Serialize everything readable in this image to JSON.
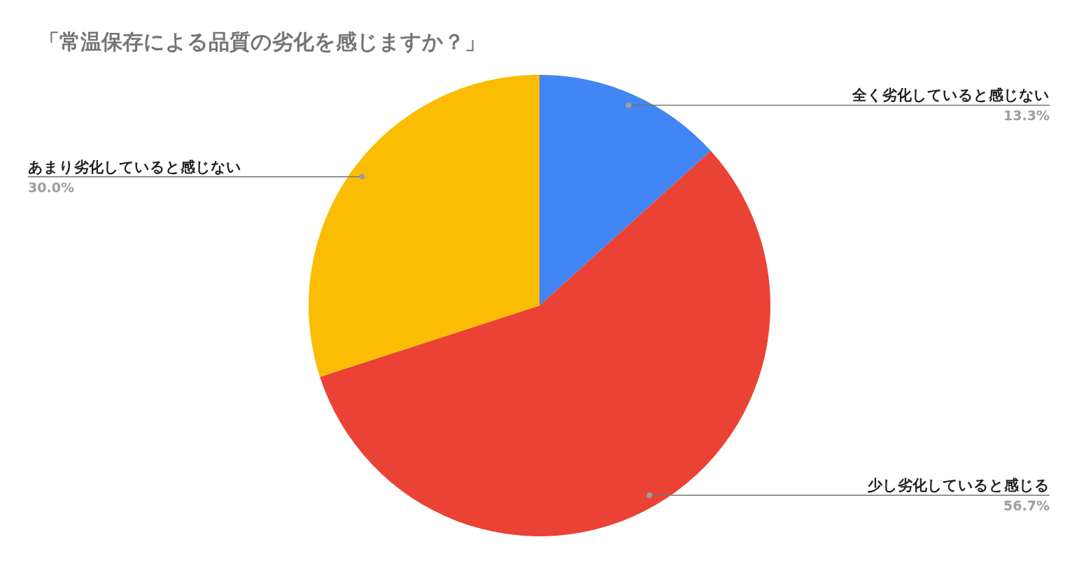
{
  "chart_data": {
    "type": "pie",
    "title": "「常温保存による品質の劣化を感じますか？」",
    "categories": [
      "全く劣化していると感じない",
      "少し劣化していると感じる",
      "あまり劣化していると感じない"
    ],
    "values": [
      13.3,
      56.7,
      30.0
    ],
    "value_labels": [
      "13.3%",
      "56.7%",
      "30.0%"
    ],
    "colors": [
      "#4285f4",
      "#ea4335",
      "#fbbc04"
    ]
  }
}
